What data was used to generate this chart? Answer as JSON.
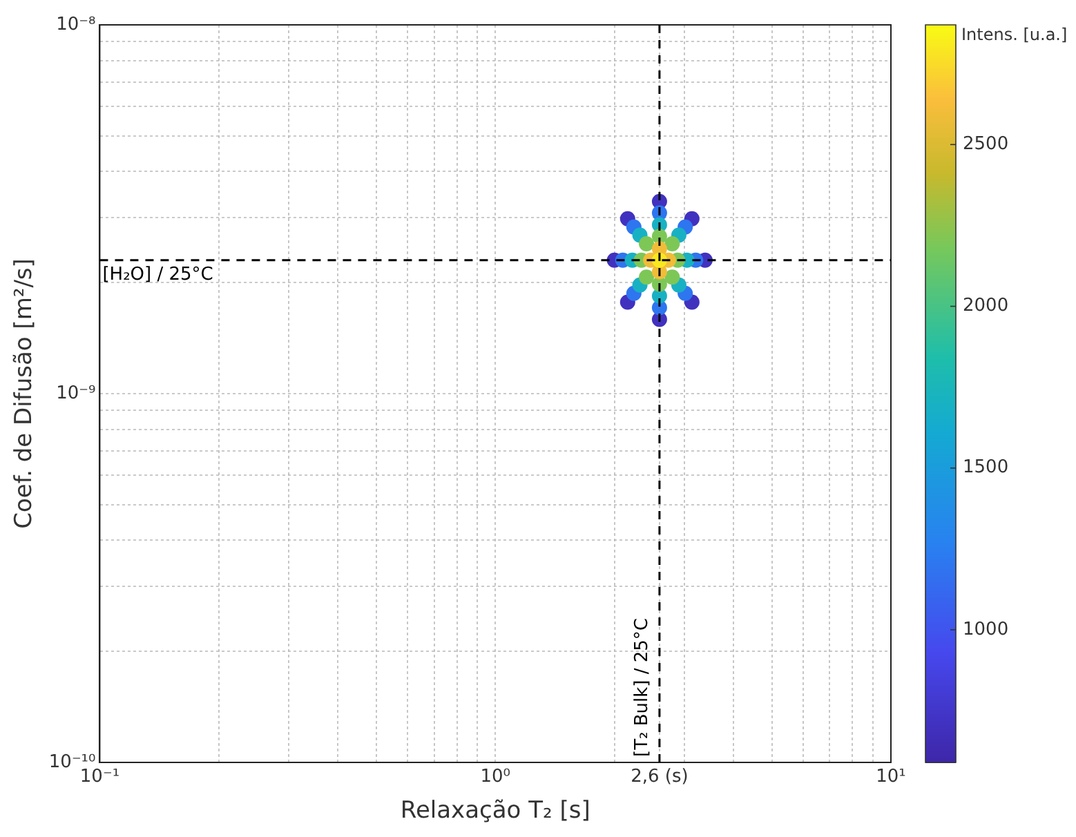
{
  "chart_data": {
    "type": "scatter",
    "xlabel": "Relaxação T₂ [s]",
    "ylabel": "Coef. de Difusão [m²/s]",
    "clabel": "Intens. [u.a.]",
    "log": "xy",
    "grid": true,
    "marker": "circle",
    "x": [
      3.39,
      3.14,
      2.6,
      2.16,
      2.0,
      2.16,
      2.6,
      3.14,
      3.21,
      3.02,
      2.6,
      2.24,
      2.1,
      2.24,
      2.6,
      3.02,
      3.05,
      2.91,
      2.6,
      2.32,
      2.22,
      2.32,
      2.6,
      2.91,
      2.89,
      2.8,
      2.6,
      2.41,
      2.34,
      2.41,
      2.6,
      2.8,
      2.74,
      2.6,
      2.47,
      2.6,
      2.6
    ],
    "values": [
      2.3e-09,
      2.98e-09,
      3.32e-09,
      2.98e-09,
      2.3e-09,
      1.77e-09,
      1.59e-09,
      1.77e-09,
      2.3e-09,
      2.83e-09,
      3.09e-09,
      2.83e-09,
      2.3e-09,
      1.87e-09,
      1.71e-09,
      1.87e-09,
      2.3e-09,
      2.69e-09,
      2.87e-09,
      2.69e-09,
      2.3e-09,
      1.97e-09,
      1.84e-09,
      1.97e-09,
      2.3e-09,
      2.55e-09,
      2.67e-09,
      2.55e-09,
      2.3e-09,
      2.07e-09,
      1.98e-09,
      2.07e-09,
      2.3e-09,
      2.47e-09,
      2.3e-09,
      2.14e-09,
      2.3e-09
    ],
    "cvalues": [
      700,
      700,
      700,
      700,
      700,
      700,
      700,
      700,
      1200,
      1200,
      1200,
      1200,
      1200,
      1200,
      1200,
      1200,
      1700,
      1700,
      1700,
      1700,
      1700,
      1700,
      1700,
      1700,
      2200,
      2200,
      2200,
      2200,
      2200,
      2200,
      2200,
      2200,
      2600,
      2600,
      2600,
      2600,
      2800
    ],
    "xlim": [
      0.1,
      10
    ],
    "xticks": [
      {
        "value": 0.1,
        "label": "10⁻¹"
      },
      {
        "value": 0.2,
        "label": null
      },
      {
        "value": 0.3,
        "label": null
      },
      {
        "value": 0.4,
        "label": null
      },
      {
        "value": 0.5,
        "label": null
      },
      {
        "value": 0.6,
        "label": null
      },
      {
        "value": 0.7,
        "label": null
      },
      {
        "value": 0.8,
        "label": null
      },
      {
        "value": 0.9,
        "label": null
      },
      {
        "value": 1,
        "label": "10⁰"
      },
      {
        "value": 2,
        "label": null
      },
      {
        "value": 2.6,
        "label": "2,6 (s)"
      },
      {
        "value": 3,
        "label": null
      },
      {
        "value": 4,
        "label": null
      },
      {
        "value": 5,
        "label": null
      },
      {
        "value": 6,
        "label": null
      },
      {
        "value": 7,
        "label": null
      },
      {
        "value": 8,
        "label": null
      },
      {
        "value": 9,
        "label": null
      },
      {
        "value": 10,
        "label": "10¹"
      }
    ],
    "ylim": [
      1e-10,
      1e-08
    ],
    "yticks": [
      {
        "value": 1e-10,
        "label": "10⁻¹⁰"
      },
      {
        "value": 2e-10,
        "label": null
      },
      {
        "value": 3e-10,
        "label": null
      },
      {
        "value": 4e-10,
        "label": null
      },
      {
        "value": 5e-10,
        "label": null
      },
      {
        "value": 6e-10,
        "label": null
      },
      {
        "value": 7e-10,
        "label": null
      },
      {
        "value": 8e-10,
        "label": null
      },
      {
        "value": 9e-10,
        "label": null
      },
      {
        "value": 1e-09,
        "label": "10⁻⁹"
      },
      {
        "value": 2e-09,
        "label": null
      },
      {
        "value": 3e-09,
        "label": null
      },
      {
        "value": 4e-09,
        "label": null
      },
      {
        "value": 5e-09,
        "label": null
      },
      {
        "value": 6e-09,
        "label": null
      },
      {
        "value": 7e-09,
        "label": null
      },
      {
        "value": 8e-09,
        "label": null
      },
      {
        "value": 9e-09,
        "label": null
      },
      {
        "value": 1e-08,
        "label": "10⁻⁸"
      }
    ],
    "clim": [
      590,
      2870
    ],
    "cticks": [
      1000,
      1500,
      2000,
      2500
    ],
    "ref_lines": [
      {
        "axis": "y",
        "value": 2.3e-09,
        "label": "[H₂O] / 25°C",
        "color": "#000000",
        "line_style": "dashed"
      },
      {
        "axis": "x",
        "value": 2.6,
        "label": "[T₂ Bulk] / 25°C",
        "color": "#000000",
        "line_style": "dashed"
      }
    ]
  }
}
